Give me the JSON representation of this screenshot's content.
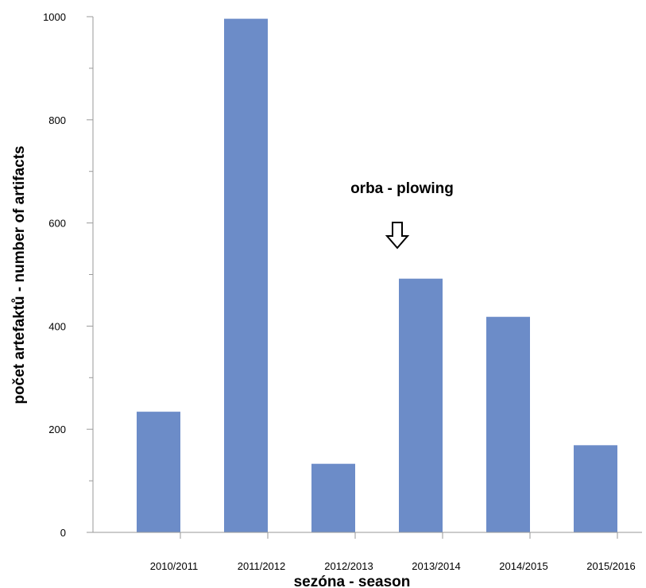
{
  "chart_data": {
    "type": "bar",
    "categories": [
      "2010/2011",
      "2011/2012",
      "2012/2013",
      "2013/2014",
      "2014/2015",
      "2015/2016"
    ],
    "values": [
      234,
      996,
      133,
      492,
      418,
      169
    ],
    "xlabel": "sezóna - season",
    "ylabel": "počet artefaktů - number of artifacts",
    "ylim": [
      0,
      1000
    ],
    "yticks": [
      0,
      200,
      400,
      600,
      800,
      1000
    ],
    "grid": false,
    "bar_color": "#6c8cc8",
    "annotation": {
      "text": "orba - plowing",
      "arrow": "down-arrow-icon",
      "points_to": "2013/2014"
    }
  }
}
